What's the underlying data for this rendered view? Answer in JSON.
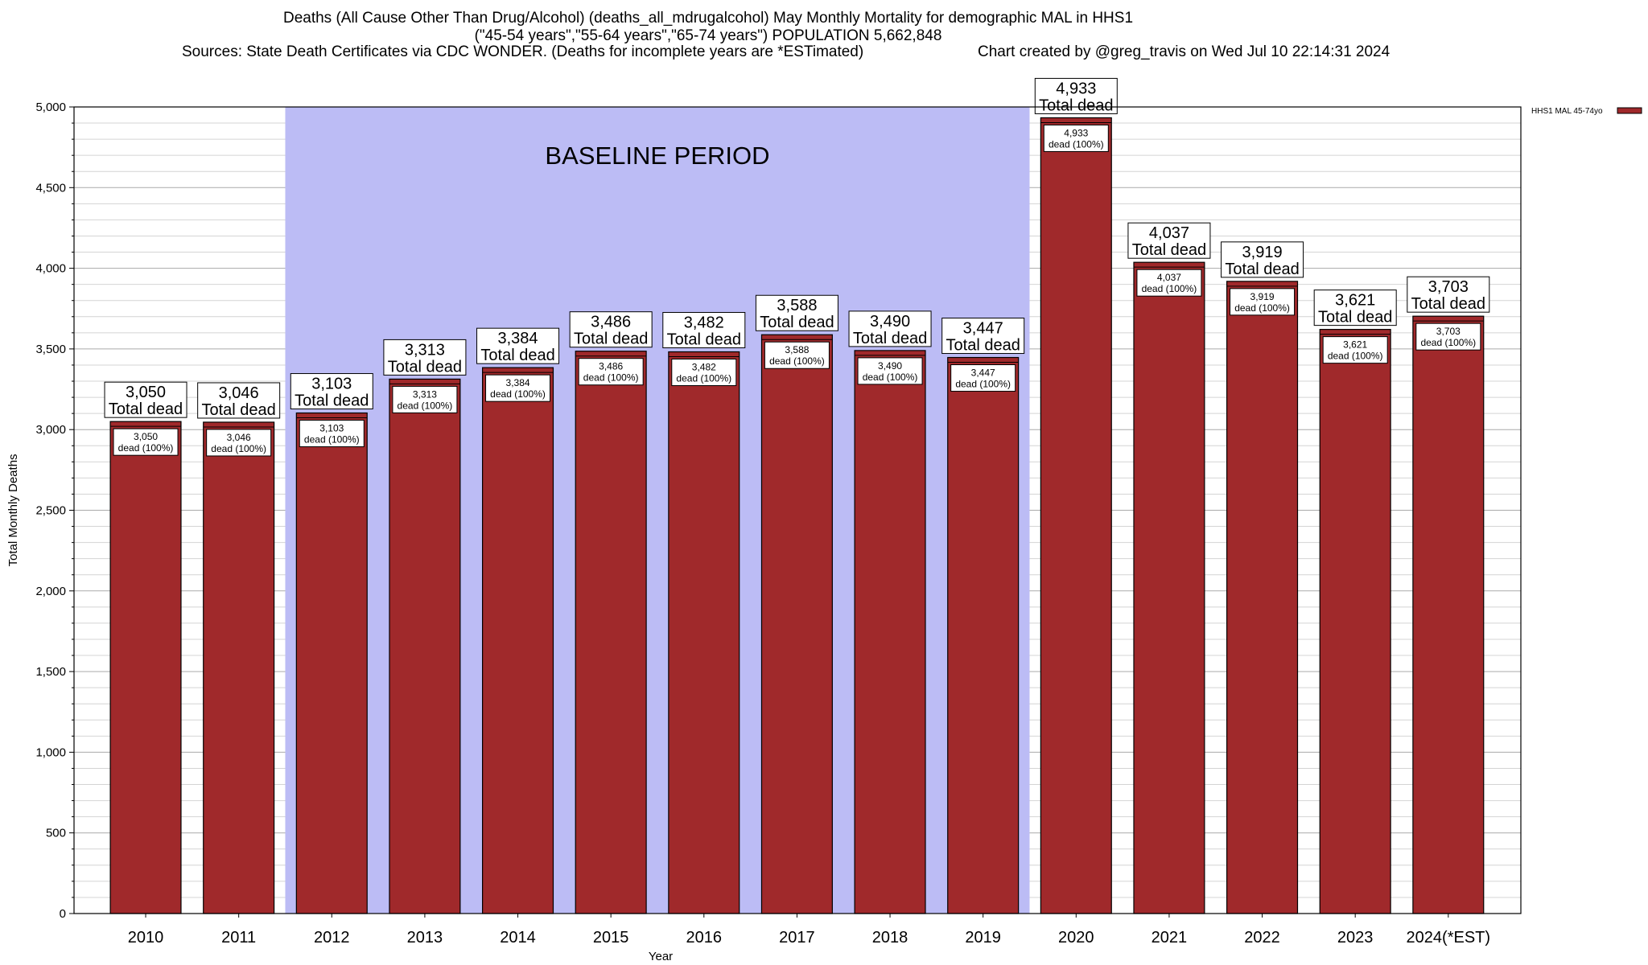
{
  "header": {
    "title_line1": "Deaths (All Cause Other Than Drug/Alcohol) (deaths_all_mdrugalcohol) May Monthly Mortality for demographic MAL in HHS1",
    "title_line2": "(\"45-54 years\",\"55-64 years\",\"65-74 years\") POPULATION 5,662,848",
    "sources": "Sources: State Death Certificates via CDC WONDER. (Deaths for incomplete years are *ESTimated)",
    "credit": "Chart created by @greg_travis on Wed Jul 10 22:14:31 2024"
  },
  "colors": {
    "bar": "#a0292b",
    "baseline_band": "#bcbcf5",
    "grid": "#bcbcbc"
  },
  "chart_data": {
    "type": "bar",
    "categories": [
      "2010",
      "2011",
      "2012",
      "2013",
      "2014",
      "2015",
      "2016",
      "2017",
      "2018",
      "2019",
      "2020",
      "2021",
      "2022",
      "2023",
      "2024(*EST)"
    ],
    "series": [
      {
        "name": "HHS1 MAL 45-74yo",
        "values": [
          3050,
          3046,
          3103,
          3313,
          3384,
          3486,
          3482,
          3588,
          3490,
          3447,
          4933,
          4037,
          3919,
          3621,
          3703
        ]
      }
    ],
    "value_labels": [
      "3,050",
      "3,046",
      "3,103",
      "3,313",
      "3,384",
      "3,486",
      "3,482",
      "3,588",
      "3,490",
      "3,447",
      "4,933",
      "4,037",
      "3,919",
      "3,621",
      "3,703"
    ],
    "top_label_suffix": "Total dead",
    "inner_label_suffix": "dead (100%)",
    "xlabel": "Year",
    "ylabel": "Total Monthly Deaths",
    "ylim": [
      0,
      5000
    ],
    "yticks": [
      0,
      500,
      1000,
      1500,
      2000,
      2500,
      3000,
      3500,
      4000,
      4500,
      5000
    ],
    "ytick_labels": [
      "0",
      "500",
      "1,000",
      "1,500",
      "2,000",
      "2,500",
      "3,000",
      "3,500",
      "4,000",
      "4,500",
      "5,000"
    ],
    "grid": true,
    "legend_position": "top-right",
    "baseline_band": {
      "label": "BASELINE PERIOD",
      "from": "2012",
      "to": "2019"
    }
  }
}
